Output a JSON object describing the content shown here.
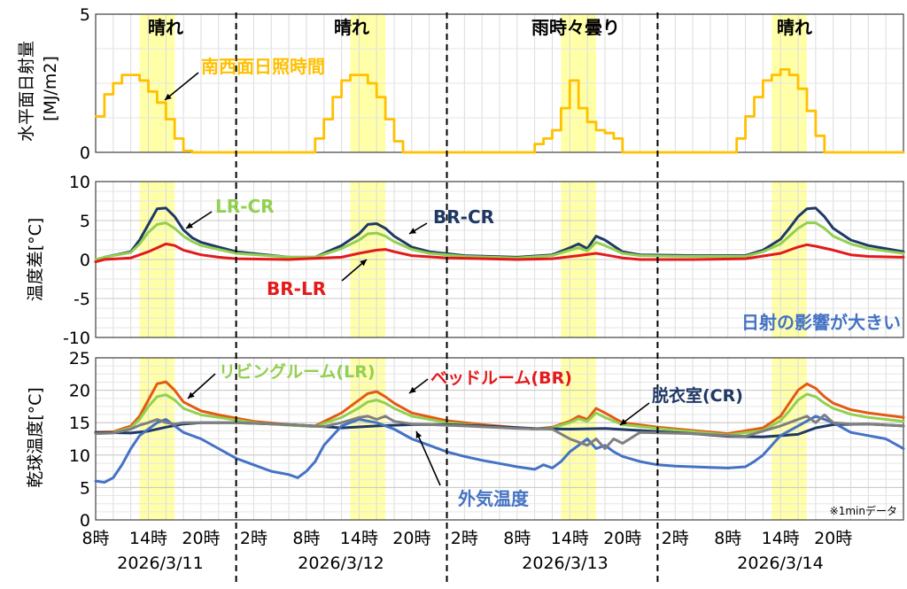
{
  "chart_data": {
    "type": "line",
    "x_axis": {
      "tick_labels": [
        "8時",
        "14時",
        "20時",
        "2時",
        "8時",
        "14時",
        "20時",
        "2時",
        "8時",
        "14時",
        "20時",
        "2時",
        "8時",
        "14時",
        "20時"
      ],
      "day_labels": [
        "2026/3/11",
        "2026/3/12",
        "2026/3/13",
        "2026/3/14"
      ],
      "hours_start": 8,
      "hours_end": 100
    },
    "weather_labels": [
      "晴れ",
      "晴れ",
      "雨時々曇り",
      "晴れ"
    ],
    "note": "※1minデータ",
    "panels": [
      {
        "id": "solar",
        "ylabel": "水平面日射量\n[MJ/m2]",
        "yticks": [
          "5",
          "0"
        ],
        "ylim": [
          0,
          5
        ],
        "series": [
          {
            "name": "南西面日照時間",
            "color": "#FFC000",
            "step": true,
            "x": [
              8,
              9,
              10,
              11,
              12,
              13,
              14,
              15,
              16,
              17,
              18,
              19,
              32,
              33,
              34,
              35,
              36,
              37,
              38,
              39,
              40,
              41,
              42,
              43,
              57,
              58,
              59,
              60,
              61,
              62,
              63,
              64,
              65,
              66,
              67,
              68,
              80,
              81,
              82,
              83,
              84,
              85,
              86,
              87,
              88,
              89,
              90,
              91,
              100
            ],
            "y": [
              1.3,
              2.1,
              2.5,
              2.8,
              2.8,
              2.6,
              2.2,
              1.8,
              1.2,
              0.5,
              0.05,
              0,
              0,
              0.5,
              1.2,
              2.0,
              2.6,
              2.8,
              2.8,
              2.5,
              2.0,
              1.2,
              0.4,
              0,
              0,
              0.3,
              0.5,
              0.8,
              1.6,
              2.6,
              1.6,
              1.1,
              0.8,
              0.7,
              0.5,
              0,
              0,
              0.5,
              1.3,
              2.0,
              2.6,
              2.8,
              3.0,
              2.8,
              2.3,
              1.5,
              0.6,
              0,
              0
            ]
          }
        ]
      },
      {
        "id": "diff",
        "ylabel": "温度差[°C]",
        "yticks": [
          "10",
          "5",
          "0",
          "-5",
          "-10"
        ],
        "ylim": [
          -10,
          10
        ],
        "series": [
          {
            "name": "BR-CR",
            "color": "#1F3864",
            "x": [
              8,
              9,
              12,
              13,
              14,
              15,
              16,
              17,
              18,
              19,
              20,
              22,
              24,
              30,
              33,
              36,
              38,
              39,
              40,
              41,
              42,
              44,
              46,
              50,
              56,
              60,
              62,
              63,
              64,
              65,
              66,
              68,
              70,
              76,
              82,
              84,
              86,
              87,
              88,
              89,
              90,
              91,
              92,
              94,
              96,
              100
            ],
            "y": [
              -0.3,
              0.3,
              1.0,
              2.5,
              4.5,
              6.5,
              6.6,
              5.5,
              3.8,
              2.8,
              2.2,
              1.6,
              1.0,
              0.3,
              0.3,
              1.8,
              3.3,
              4.5,
              4.6,
              4.0,
              3.0,
              1.6,
              1.0,
              0.5,
              0.3,
              0.6,
              1.5,
              2.0,
              1.4,
              3.0,
              2.5,
              1.0,
              0.6,
              0.5,
              0.5,
              1.2,
              2.6,
              4.0,
              5.5,
              6.5,
              6.6,
              5.5,
              4.0,
              2.5,
              1.8,
              1.0
            ]
          },
          {
            "name": "LR-CR",
            "color": "#92D050",
            "x": [
              8,
              9,
              12,
              13,
              14,
              15,
              16,
              17,
              18,
              19,
              20,
              22,
              24,
              30,
              33,
              36,
              38,
              39,
              40,
              41,
              42,
              44,
              46,
              50,
              56,
              60,
              62,
              63,
              64,
              65,
              66,
              68,
              70,
              76,
              82,
              84,
              86,
              87,
              88,
              89,
              90,
              91,
              92,
              94,
              96,
              100
            ],
            "y": [
              0,
              0.3,
              0.9,
              2.0,
              3.5,
              4.5,
              4.7,
              4.0,
              3.0,
              2.3,
              1.8,
              1.3,
              0.8,
              0.3,
              0.3,
              1.4,
              2.5,
              3.3,
              3.4,
              3.0,
              2.3,
              1.3,
              0.8,
              0.4,
              0.2,
              0.5,
              1.2,
              1.5,
              1.1,
              2.2,
              1.8,
              0.8,
              0.5,
              0.4,
              0.4,
              1.0,
              2.0,
              3.0,
              4.0,
              4.7,
              4.7,
              4.0,
              3.0,
              2.0,
              1.4,
              0.8
            ]
          },
          {
            "name": "BR-LR",
            "color": "#E31A1C",
            "x": [
              8,
              9,
              12,
              14,
              16,
              17,
              18,
              20,
              22,
              24,
              30,
              36,
              38,
              40,
              41,
              42,
              44,
              48,
              56,
              60,
              63,
              65,
              66,
              68,
              70,
              76,
              82,
              86,
              88,
              89,
              90,
              92,
              94,
              96,
              100
            ],
            "y": [
              -0.3,
              0,
              0.2,
              1.0,
              2.0,
              1.8,
              1.2,
              0.6,
              0.3,
              0.1,
              0,
              0.3,
              0.8,
              1.2,
              1.3,
              1.0,
              0.5,
              0.2,
              0,
              0.1,
              0.5,
              0.8,
              0.6,
              0.2,
              0,
              0,
              0.1,
              0.8,
              1.6,
              1.9,
              1.7,
              1.2,
              0.6,
              0.4,
              0.3
            ]
          }
        ]
      },
      {
        "id": "temp",
        "ylabel": "乾球温度[°C]",
        "yticks": [
          "25",
          "20",
          "15",
          "10",
          "5",
          "0"
        ],
        "ylim": [
          0,
          25
        ],
        "series": [
          {
            "name": "ベッドルーム(BR)",
            "color": "#E35A12",
            "x": [
              8,
              10,
              12,
              13,
              14,
              15,
              16,
              17,
              18,
              20,
              22,
              26,
              30,
              33,
              36,
              38,
              39,
              40,
              41,
              42,
              44,
              48,
              52,
              58,
              60,
              62,
              63,
              64,
              65,
              66,
              68,
              72,
              76,
              80,
              84,
              86,
              87,
              88,
              89,
              90,
              91,
              92,
              94,
              96,
              100
            ],
            "y": [
              13.5,
              13.6,
              14.5,
              16.0,
              18.5,
              21.0,
              21.3,
              20.0,
              18.2,
              16.8,
              16.2,
              15.2,
              14.7,
              14.5,
              16.5,
              18.5,
              19.5,
              19.8,
              19.0,
              18.0,
              16.5,
              15.3,
              14.7,
              14.0,
              14.3,
              15.2,
              16.0,
              15.5,
              17.2,
              16.5,
              15.0,
              14.3,
              13.8,
              13.3,
              14.2,
              16.0,
              18.0,
              20.0,
              21.0,
              20.3,
              19.0,
              18.0,
              17.0,
              16.5,
              15.8
            ]
          },
          {
            "name": "リビングルーム(LR)",
            "color": "#92D050",
            "x": [
              8,
              10,
              12,
              13,
              14,
              15,
              16,
              17,
              18,
              20,
              22,
              26,
              30,
              33,
              36,
              38,
              39,
              40,
              41,
              42,
              44,
              48,
              52,
              58,
              60,
              62,
              63,
              64,
              65,
              66,
              68,
              72,
              76,
              80,
              84,
              86,
              87,
              88,
              89,
              90,
              91,
              92,
              94,
              96,
              100
            ],
            "y": [
              13.4,
              13.5,
              14.2,
              15.5,
              17.5,
              19.0,
              19.3,
              18.5,
              17.2,
              16.2,
              15.8,
              15.0,
              14.6,
              14.4,
              15.8,
              17.3,
              18.2,
              18.5,
              18.0,
              17.2,
              16.0,
              15.0,
              14.5,
              14.0,
              14.2,
              15.0,
              15.6,
              15.2,
              16.5,
              15.8,
              14.7,
              14.1,
              13.6,
              13.1,
              13.8,
              15.3,
              16.8,
              18.5,
              19.4,
              19.0,
              18.0,
              17.2,
              16.3,
              15.8,
              15.2
            ]
          },
          {
            "name": "脱衣室(CR)",
            "color": "#1F3864",
            "x": [
              8,
              12,
              14,
              16,
              18,
              20,
              24,
              30,
              34,
              36,
              40,
              42,
              44,
              48,
              52,
              58,
              62,
              66,
              70,
              76,
              80,
              84,
              88,
              90,
              92,
              96,
              100
            ],
            "y": [
              13.5,
              13.4,
              13.7,
              14.3,
              14.8,
              15.0,
              15.0,
              14.7,
              14.4,
              14.2,
              14.5,
              14.6,
              14.7,
              14.7,
              14.5,
              14.1,
              14.0,
              14.1,
              13.8,
              13.3,
              12.9,
              12.8,
              13.2,
              14.2,
              14.7,
              14.8,
              14.5
            ]
          },
          {
            "name": "外気温度",
            "color": "#4472C4",
            "x": [
              8,
              9,
              10,
              11,
              12,
              13,
              14,
              15,
              16,
              17,
              18,
              20,
              22,
              24,
              26,
              28,
              30,
              31,
              32,
              33,
              34,
              35,
              36,
              38,
              40,
              42,
              44,
              46,
              48,
              50,
              52,
              54,
              56,
              58,
              59,
              60,
              61,
              62,
              63,
              64,
              65,
              66,
              67,
              68,
              70,
              72,
              74,
              76,
              78,
              80,
              82,
              83,
              84,
              85,
              86,
              88,
              90,
              92,
              94,
              96,
              98,
              100
            ],
            "y": [
              6.0,
              5.8,
              6.5,
              8.5,
              11.0,
              13.0,
              14.0,
              15.0,
              15.5,
              14.5,
              13.5,
              12.5,
              11.0,
              9.5,
              8.5,
              7.5,
              7.0,
              6.5,
              7.5,
              9.0,
              11.5,
              13.0,
              14.5,
              15.5,
              15.0,
              14.0,
              12.5,
              11.5,
              10.5,
              9.8,
              9.2,
              8.7,
              8.2,
              7.8,
              8.5,
              8.0,
              9.0,
              10.5,
              11.5,
              12.5,
              11.0,
              11.5,
              10.5,
              9.8,
              9.0,
              8.5,
              8.3,
              8.2,
              8.1,
              8.0,
              8.2,
              9.0,
              10.0,
              11.5,
              13.0,
              14.5,
              16.0,
              15.0,
              13.5,
              13.0,
              12.5,
              11.0
            ]
          },
          {
            "name": "",
            "color": "#7F7F7F",
            "desc": "gray series (unlabeled)",
            "x": [
              8,
              10,
              12,
              13,
              14,
              15,
              16,
              17,
              18,
              20,
              24,
              30,
              34,
              36,
              38,
              39,
              40,
              41,
              42,
              44,
              46,
              50,
              56,
              60,
              62,
              63,
              64,
              65,
              66,
              67,
              68,
              70,
              76,
              82,
              86,
              88,
              89,
              90,
              91,
              92,
              94,
              96,
              100
            ],
            "y": [
              13.3,
              13.4,
              14.0,
              14.6,
              15.0,
              15.5,
              15.0,
              14.8,
              15.0,
              15.0,
              15.0,
              14.7,
              14.4,
              15.0,
              15.8,
              16.0,
              15.5,
              16.0,
              15.2,
              14.8,
              14.7,
              14.5,
              14.1,
              14.0,
              12.5,
              12.0,
              11.5,
              12.5,
              11.0,
              12.5,
              11.8,
              13.5,
              13.3,
              12.9,
              14.5,
              15.5,
              16.0,
              15.0,
              16.2,
              15.0,
              14.8,
              14.8,
              14.5
            ]
          }
        ]
      }
    ],
    "annotations": {
      "sunshine_label": "南西面日照時間",
      "lr_cr": "LR-CR",
      "br_cr": "BR-CR",
      "br_lr": "BR-LR",
      "solar_effect": "日射の影響が大きい",
      "lr": "リビングルーム(LR)",
      "br": "ベッドルーム(BR)",
      "cr": "脱衣室(CR)",
      "outdoor": "外気温度"
    },
    "sun_bands_hours": [
      [
        13,
        17
      ],
      [
        37,
        41
      ],
      [
        61,
        65
      ],
      [
        85,
        89
      ]
    ],
    "day_dividers_hours": [
      24,
      48,
      72
    ]
  }
}
